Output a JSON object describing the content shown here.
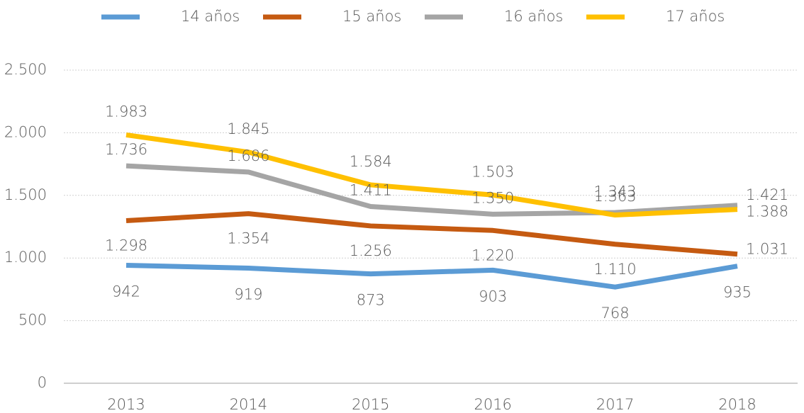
{
  "chart_data": {
    "type": "line",
    "categories": [
      "2013",
      "2014",
      "2015",
      "2016",
      "2017",
      "2018"
    ],
    "series": [
      {
        "name": "14 años",
        "color": "#5b9bd5",
        "values": [
          942,
          919,
          873,
          903,
          768,
          935
        ],
        "value_labels": [
          "942",
          "919",
          "873",
          "903",
          "768",
          "935"
        ]
      },
      {
        "name": "15 años",
        "color": "#c55a11",
        "values": [
          1298,
          1354,
          1256,
          1220,
          1110,
          1031
        ],
        "value_labels": [
          "1.298",
          "1.354",
          "1.256",
          "1.220",
          "1.110",
          "1.031"
        ]
      },
      {
        "name": "16 años",
        "color": "#a5a5a5",
        "values": [
          1736,
          1686,
          1411,
          1350,
          1363,
          1421
        ],
        "value_labels": [
          "1.736",
          "1.686",
          "1.411",
          "1.350",
          "1.363",
          "1.421"
        ]
      },
      {
        "name": "17 años",
        "color": "#ffc000",
        "values": [
          1983,
          1845,
          1584,
          1503,
          1343,
          1388
        ],
        "value_labels": [
          "1.983",
          "1.845",
          "1.584",
          "1.503",
          "1.343",
          "1.388"
        ]
      }
    ],
    "ylim": [
      0,
      2500
    ],
    "yticks": [
      0,
      500,
      {
        "value": 1000,
        "label": "1.000"
      },
      {
        "value": 1500,
        "label": "1.500"
      },
      {
        "value": 2000,
        "label": "2.000"
      },
      {
        "value": 2500,
        "label": "2.500"
      }
    ],
    "grid": true,
    "legend": "top"
  }
}
